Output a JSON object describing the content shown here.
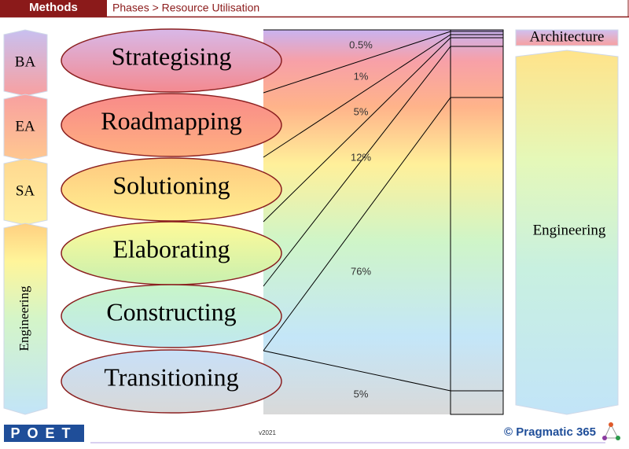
{
  "header": {
    "section": "Methods",
    "breadcrumb": "Phases > Resource Utilisation"
  },
  "roles": [
    "BA",
    "EA",
    "SA",
    "Engineering"
  ],
  "phases": [
    {
      "label": "Strategising",
      "share": "0.5%"
    },
    {
      "label": "Roadmapping",
      "share": "1%"
    },
    {
      "label": "Solutioning",
      "share": "5%"
    },
    {
      "label": "Elaborating",
      "share": "12%"
    },
    {
      "label": "Constructing",
      "share": "76%"
    },
    {
      "label": "Transitioning",
      "share": "5%"
    }
  ],
  "disciplines": [
    "Architecture",
    "Engineering"
  ],
  "footer": {
    "logo": "POET",
    "version": "v2021",
    "brand": "© Pragmatic 365"
  }
}
